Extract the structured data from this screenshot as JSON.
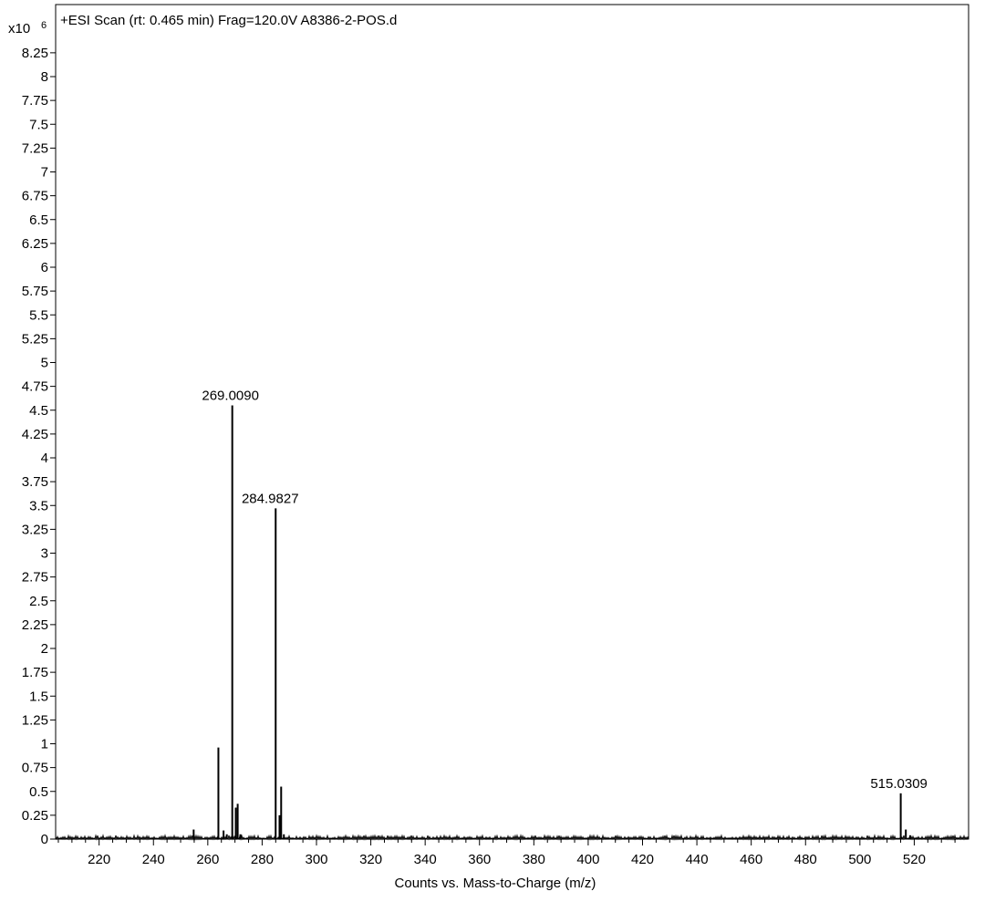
{
  "chart_data": {
    "type": "bar",
    "title": "+ESI Scan (rt: 0.465 min) Frag=120.0V A8386-2-POS.d",
    "y_multiplier_label": "x10",
    "y_multiplier_exponent": "6",
    "xlabel": "Counts vs. Mass-to-Charge (m/z)",
    "ylabel": "",
    "xlim": [
      204,
      540
    ],
    "ylim": [
      0,
      8.5
    ],
    "grid": false,
    "legend": "none",
    "x_ticks": [
      220,
      240,
      260,
      280,
      300,
      320,
      340,
      360,
      380,
      400,
      420,
      440,
      460,
      480,
      500,
      520
    ],
    "y_ticks": [
      0,
      0.25,
      0.5,
      0.75,
      1,
      1.25,
      1.5,
      1.75,
      2,
      2.25,
      2.5,
      2.75,
      3,
      3.25,
      3.5,
      3.75,
      4,
      4.25,
      4.5,
      4.75,
      5,
      5.25,
      5.5,
      5.75,
      6,
      6.25,
      6.5,
      6.75,
      7,
      7.25,
      7.5,
      7.75,
      8,
      8.25
    ],
    "peaks": [
      {
        "mz": 254.8,
        "intensity": 0.1
      },
      {
        "mz": 263.9,
        "intensity": 0.96
      },
      {
        "mz": 265.8,
        "intensity": 0.09
      },
      {
        "mz": 267.0,
        "intensity": 0.05
      },
      {
        "mz": 269.009,
        "intensity": 4.55,
        "label": "269.0090"
      },
      {
        "mz": 270.3,
        "intensity": 0.33
      },
      {
        "mz": 271.0,
        "intensity": 0.37
      },
      {
        "mz": 272.0,
        "intensity": 0.05
      },
      {
        "mz": 284.9827,
        "intensity": 3.47,
        "label": "284.9827"
      },
      {
        "mz": 286.4,
        "intensity": 0.25
      },
      {
        "mz": 287.0,
        "intensity": 0.55
      },
      {
        "mz": 288.0,
        "intensity": 0.05
      },
      {
        "mz": 515.0309,
        "intensity": 0.48,
        "label": "515.0309"
      },
      {
        "mz": 516.9,
        "intensity": 0.1
      },
      {
        "mz": 518.5,
        "intensity": 0.04
      }
    ],
    "color": "#000000"
  }
}
